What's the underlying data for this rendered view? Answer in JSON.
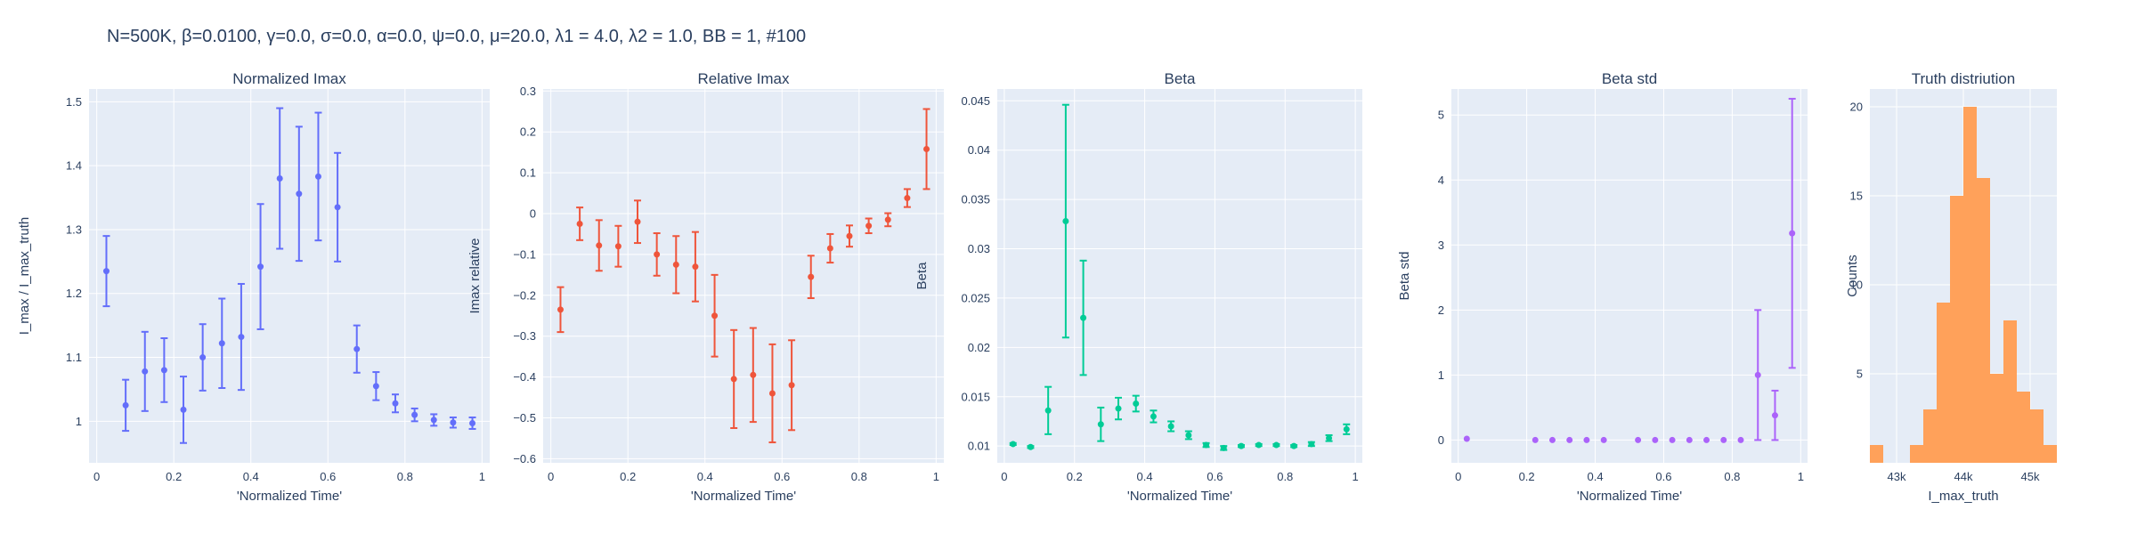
{
  "title": "N=500K, β=0.0100, γ=0.0, σ=0.0,  α=0.0, ψ=0.0, μ=20.0, λ1 = 4.0, λ2 = 1.0, BB = 1, #100",
  "colors": {
    "plot_bg": "#e5ecf6",
    "grid": "#ffffff",
    "text": "#2a3f5f",
    "normalized": "#636efa",
    "relative": "#ef553b",
    "beta": "#00cc96",
    "beta_std": "#ab63fa",
    "truth": "#ffa15a"
  },
  "chart_data": [
    {
      "type": "scatter",
      "title": "Normalized Imax",
      "xlabel": "'Normalized Time'",
      "ylabel": "I_max / I_max_truth",
      "xlim": [
        -0.02,
        1.02
      ],
      "ylim": [
        0.935,
        1.52
      ],
      "xticks": [
        0,
        0.2,
        0.4,
        0.6,
        0.8,
        1
      ],
      "xtick_labels": [
        "0",
        "0.2",
        "0.4",
        "0.6",
        "0.8",
        "1"
      ],
      "yticks": [
        1,
        1.1,
        1.2,
        1.3,
        1.4,
        1.5
      ],
      "ytick_labels": [
        "1",
        "1.1",
        "1.2",
        "1.3",
        "1.4",
        "1.5"
      ],
      "color": "#636efa",
      "series": [
        {
          "x": [
            0.025,
            0.075,
            0.125,
            0.175,
            0.225,
            0.275,
            0.325,
            0.375,
            0.425,
            0.475,
            0.525,
            0.575,
            0.625,
            0.675,
            0.725,
            0.775,
            0.825,
            0.875,
            0.925,
            0.975
          ],
          "y": [
            1.235,
            1.025,
            1.078,
            1.08,
            1.018,
            1.1,
            1.122,
            1.132,
            1.242,
            1.38,
            1.356,
            1.383,
            1.335,
            1.113,
            1.055,
            1.028,
            1.01,
            1.002,
            0.998,
            0.997
          ],
          "err": [
            0.055,
            0.04,
            0.062,
            0.05,
            0.052,
            0.052,
            0.07,
            0.083,
            0.098,
            0.11,
            0.105,
            0.1,
            0.085,
            0.037,
            0.022,
            0.014,
            0.01,
            0.009,
            0.008,
            0.009
          ]
        }
      ]
    },
    {
      "type": "scatter",
      "title": "Relative Imax",
      "xlabel": "'Normalized Time'",
      "ylabel": "Imax relative",
      "xlim": [
        -0.02,
        1.02
      ],
      "ylim": [
        -0.61,
        0.305
      ],
      "xticks": [
        0,
        0.2,
        0.4,
        0.6,
        0.8,
        1
      ],
      "xtick_labels": [
        "0",
        "0.2",
        "0.4",
        "0.6",
        "0.8",
        "1"
      ],
      "yticks": [
        -0.6,
        -0.5,
        -0.4,
        -0.3,
        -0.2,
        -0.1,
        0,
        0.1,
        0.2,
        0.3
      ],
      "ytick_labels": [
        "−0.6",
        "−0.5",
        "−0.4",
        "−0.3",
        "−0.2",
        "−0.1",
        "0",
        "0.1",
        "0.2",
        "0.3"
      ],
      "color": "#ef553b",
      "series": [
        {
          "x": [
            0.025,
            0.075,
            0.125,
            0.175,
            0.225,
            0.275,
            0.325,
            0.375,
            0.425,
            0.475,
            0.525,
            0.575,
            0.625,
            0.675,
            0.725,
            0.775,
            0.825,
            0.875,
            0.925,
            0.975
          ],
          "y": [
            -0.235,
            -0.025,
            -0.078,
            -0.08,
            -0.02,
            -0.1,
            -0.125,
            -0.13,
            -0.25,
            -0.405,
            -0.395,
            -0.44,
            -0.42,
            -0.155,
            -0.085,
            -0.055,
            -0.03,
            -0.015,
            0.038,
            0.158
          ],
          "err": [
            0.055,
            0.04,
            0.062,
            0.05,
            0.052,
            0.052,
            0.07,
            0.085,
            0.1,
            0.12,
            0.115,
            0.12,
            0.11,
            0.052,
            0.035,
            0.026,
            0.018,
            0.016,
            0.022,
            0.098
          ]
        }
      ]
    },
    {
      "type": "scatter",
      "title": "Beta",
      "xlabel": "'Normalized Time'",
      "ylabel": "Beta",
      "xlim": [
        -0.02,
        1.02
      ],
      "ylim": [
        0.0083,
        0.0462
      ],
      "xticks": [
        0,
        0.2,
        0.4,
        0.6,
        0.8,
        1
      ],
      "xtick_labels": [
        "0",
        "0.2",
        "0.4",
        "0.6",
        "0.8",
        "1"
      ],
      "yticks": [
        0.01,
        0.015,
        0.02,
        0.025,
        0.03,
        0.035,
        0.04,
        0.045
      ],
      "ytick_labels": [
        "0.01",
        "0.015",
        "0.02",
        "0.025",
        "0.03",
        "0.035",
        "0.04",
        "0.045"
      ],
      "color": "#00cc96",
      "series": [
        {
          "x": [
            0.025,
            0.075,
            0.125,
            0.175,
            0.225,
            0.275,
            0.325,
            0.375,
            0.425,
            0.475,
            0.525,
            0.575,
            0.625,
            0.675,
            0.725,
            0.775,
            0.825,
            0.875,
            0.925,
            0.975
          ],
          "y": [
            0.0102,
            0.0099,
            0.0136,
            0.0328,
            0.023,
            0.0122,
            0.0138,
            0.0143,
            0.013,
            0.012,
            0.0111,
            0.0101,
            0.0098,
            0.01,
            0.0101,
            0.0101,
            0.01,
            0.0102,
            0.0108,
            0.0117
          ],
          "err": [
            0.0001,
            0.0001,
            0.0024,
            0.0118,
            0.0058,
            0.0017,
            0.0011,
            0.0008,
            0.0006,
            0.0005,
            0.0004,
            0.0002,
            0.0002,
            0.0001,
            0.0001,
            0.0001,
            0.0001,
            0.0002,
            0.0003,
            0.0005
          ]
        }
      ]
    },
    {
      "type": "scatter",
      "title": "Beta std",
      "xlabel": "'Normalized Time'",
      "ylabel": "Beta std",
      "xlim": [
        -0.02,
        1.02
      ],
      "ylim": [
        -0.35,
        5.4
      ],
      "xticks": [
        0,
        0.2,
        0.4,
        0.6,
        0.8,
        1
      ],
      "xtick_labels": [
        "0",
        "0.2",
        "0.4",
        "0.6",
        "0.8",
        "1"
      ],
      "yticks": [
        0,
        1,
        2,
        3,
        4,
        5
      ],
      "ytick_labels": [
        "0",
        "1",
        "2",
        "3",
        "4",
        "5"
      ],
      "color": "#ab63fa",
      "series": [
        {
          "x": [
            0.025,
            0.225,
            0.275,
            0.325,
            0.375,
            0.425,
            0.525,
            0.575,
            0.625,
            0.675,
            0.725,
            0.775,
            0.825,
            0.875,
            0.925,
            0.975
          ],
          "y": [
            0.02,
            0.0,
            0.0,
            0.0,
            0.0,
            0.0,
            0.0,
            0.0,
            0.0,
            0.0,
            0.0,
            0.0,
            0.0,
            1.0,
            0.38,
            3.18
          ],
          "err": [
            0.0,
            0.0,
            0.0,
            0.0,
            0.0,
            0.0,
            0.0,
            0.0,
            0.0,
            0.0,
            0.0,
            0.0,
            0.0,
            1.0,
            0.38,
            2.07
          ]
        }
      ]
    },
    {
      "type": "bar",
      "subtype": "histogram",
      "title": "Truth distriution",
      "xlabel": "I_max_truth",
      "ylabel": "Counts",
      "xlim": [
        42600,
        45400
      ],
      "ylim": [
        0,
        21
      ],
      "xticks": [
        43000,
        44000,
        45000
      ],
      "xtick_labels": [
        "43k",
        "44k",
        "45k"
      ],
      "yticks": [
        5,
        10,
        15,
        20
      ],
      "ytick_labels": [
        "5",
        "10",
        "15",
        "20"
      ],
      "color": "#ffa15a",
      "bin_width": 200,
      "bin_starts": [
        42600,
        42800,
        43000,
        43200,
        43400,
        43600,
        43800,
        44000,
        44200,
        44400,
        44600,
        44800,
        45000,
        45200
      ],
      "values": [
        1,
        0,
        0,
        1,
        3,
        9,
        15,
        20,
        16,
        5,
        8,
        4,
        3,
        1
      ]
    }
  ]
}
